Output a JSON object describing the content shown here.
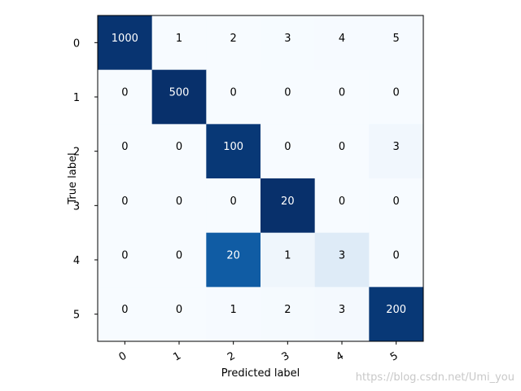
{
  "chart_data": {
    "type": "heatmap",
    "title": "",
    "xlabel": "Predicted label",
    "ylabel": "True label",
    "x_categories": [
      "0",
      "1",
      "2",
      "3",
      "4",
      "5"
    ],
    "y_categories": [
      "0",
      "1",
      "2",
      "3",
      "4",
      "5"
    ],
    "values": [
      [
        1000,
        1,
        2,
        3,
        4,
        5
      ],
      [
        0,
        500,
        0,
        0,
        0,
        0
      ],
      [
        0,
        0,
        100,
        0,
        0,
        3
      ],
      [
        0,
        0,
        0,
        20,
        0,
        0
      ],
      [
        0,
        0,
        20,
        1,
        3,
        0
      ],
      [
        0,
        0,
        1,
        2,
        3,
        200
      ]
    ],
    "colormap": "Blues",
    "normalize": "row",
    "x_tick_rotation_deg": 30,
    "grid": false
  },
  "watermark": "https://blog.csdn.net/Umi_you",
  "colors": {
    "cmap_low": "#f7fbff",
    "cmap_high": "#08306b",
    "text_dark": "#000000",
    "text_light": "#ffffff",
    "watermark": "#c8c8c8"
  }
}
